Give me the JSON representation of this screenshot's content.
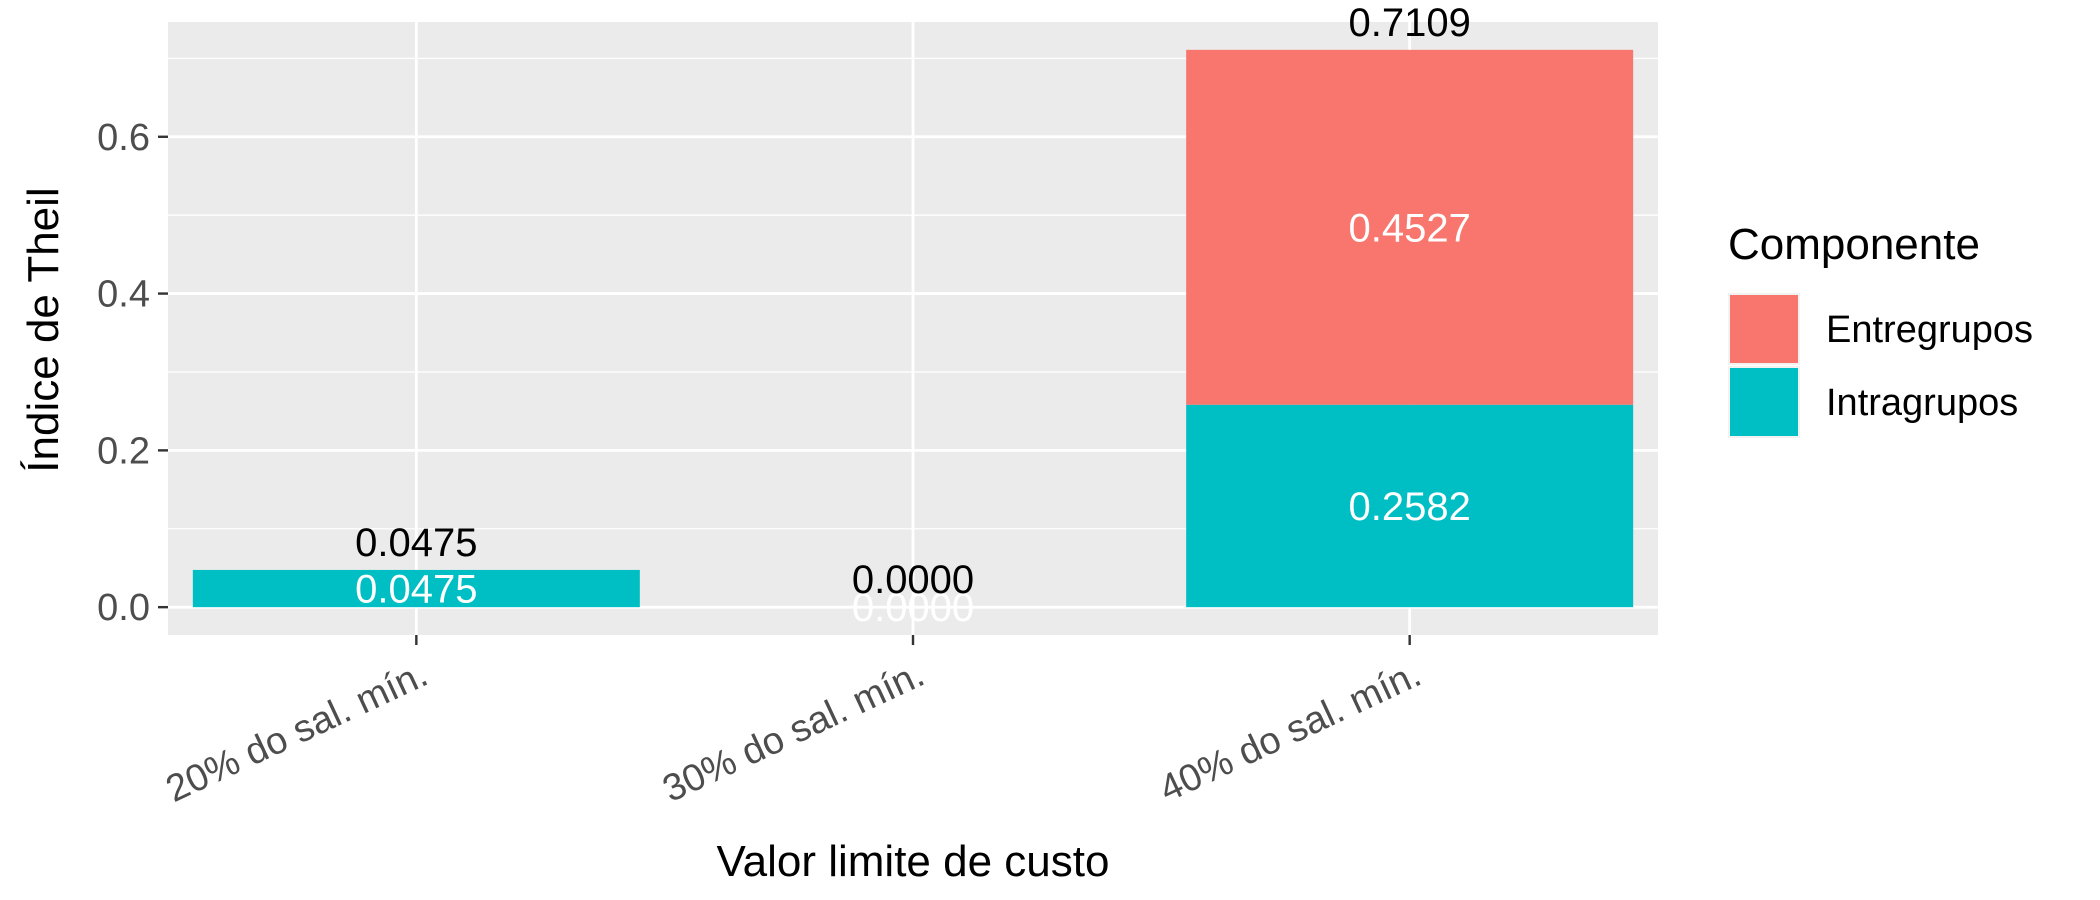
{
  "chart_data": {
    "type": "bar",
    "stacked": true,
    "categories": [
      "20% do sal. mín.",
      "30% do sal. mín.",
      "40% do sal. mín."
    ],
    "series": [
      {
        "name": "Intragrupos",
        "color": "#00BFC4",
        "values": [
          0.0475,
          0.0,
          0.2582
        ],
        "labels": [
          "0.0475",
          "0.0000",
          "0.2582"
        ]
      },
      {
        "name": "Entregrupos",
        "color": "#F8766D",
        "values": [
          0.0,
          0.0,
          0.4527
        ],
        "labels": [
          "",
          "",
          "0.4527"
        ]
      }
    ],
    "totals": [
      0.0475,
      0.0,
      0.7109
    ],
    "total_labels": [
      "0.0475",
      "0.0000",
      "0.7109"
    ],
    "xlabel": "Valor limite de custo",
    "ylabel": "Índice de Theil",
    "ylim": [
      -0.0355,
      0.7464
    ],
    "yticks": [
      0.0,
      0.2,
      0.4,
      0.6
    ],
    "ytick_labels": [
      "0.0",
      "0.2",
      "0.4",
      "0.6"
    ],
    "grid": true,
    "legend": {
      "title": "Componente",
      "position": "right",
      "entries": [
        {
          "name": "Entregrupos",
          "color": "#F8766D"
        },
        {
          "name": "Intragrupos",
          "color": "#00BFC4"
        }
      ]
    },
    "panel_background": "#EBEBEB",
    "grid_color": "#FFFFFF"
  }
}
